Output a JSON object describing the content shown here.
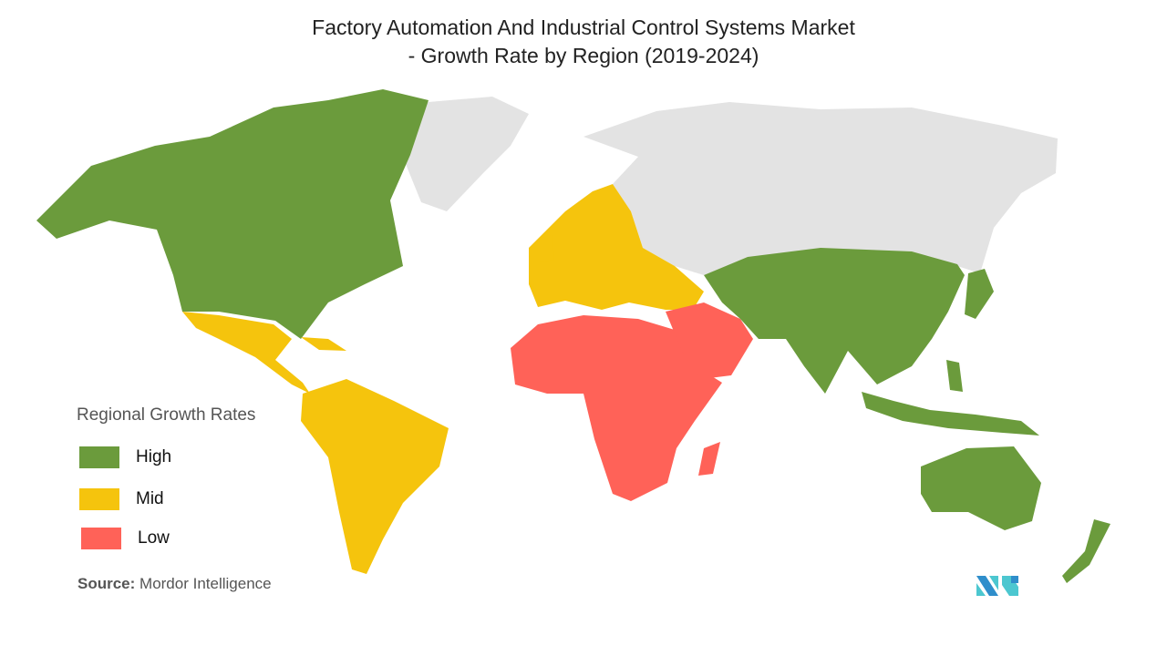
{
  "title_line1": "Factory Automation And Industrial Control Systems Market",
  "title_line2": "- Growth Rate by Region (2019-2024)",
  "legend": {
    "title": "Regional Growth Rates",
    "items": [
      {
        "label": "High",
        "color": "#6b9b3c"
      },
      {
        "label": "Mid",
        "color": "#f5c40d"
      },
      {
        "label": "Low",
        "color": "#ff6258"
      }
    ]
  },
  "regions": {
    "High": [
      "North America",
      "Asia-Pacific"
    ],
    "Mid": [
      "Latin America",
      "Europe"
    ],
    "Low": [
      "Middle East and Africa"
    ],
    "No data": [
      "Greenland",
      "Russia"
    ]
  },
  "no_data_color": "#e3e3e3",
  "source": {
    "label": "Source:",
    "value": "Mordor Intelligence"
  },
  "logo_text": "MI"
}
